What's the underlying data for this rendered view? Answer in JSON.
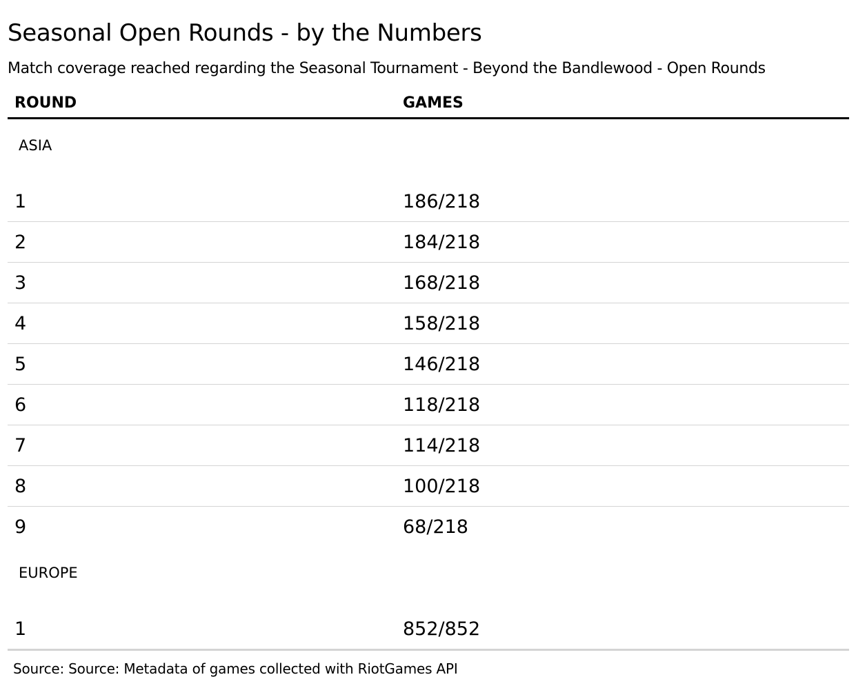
{
  "title": "Seasonal Open Rounds - by the Numbers",
  "subtitle": "Match coverage reached regarding the Seasonal Tournament - Beyond the Bandlewood - Open Rounds",
  "columns": {
    "round": "ROUND",
    "games": "GAMES"
  },
  "source": "Source: Source: Metadata of games collected with RiotGames API",
  "chart_data": {
    "type": "table",
    "title": "Seasonal Open Rounds - by the Numbers",
    "subtitle": "Match coverage reached regarding the Seasonal Tournament - Beyond the Bandlewood - Open Rounds",
    "columns": [
      "ROUND",
      "GAMES"
    ],
    "groups": [
      {
        "name": "ASIA",
        "rows": [
          {
            "round": "1",
            "games": "186/218"
          },
          {
            "round": "2",
            "games": "184/218"
          },
          {
            "round": "3",
            "games": "168/218"
          },
          {
            "round": "4",
            "games": "158/218"
          },
          {
            "round": "5",
            "games": "146/218"
          },
          {
            "round": "6",
            "games": "118/218"
          },
          {
            "round": "7",
            "games": "114/218"
          },
          {
            "round": "8",
            "games": "100/218"
          },
          {
            "round": "9",
            "games": "68/218"
          }
        ]
      },
      {
        "name": "EUROPE",
        "rows": [
          {
            "round": "1",
            "games": "852/852"
          }
        ]
      }
    ],
    "source": "Source: Source: Metadata of games collected with RiotGames API"
  }
}
